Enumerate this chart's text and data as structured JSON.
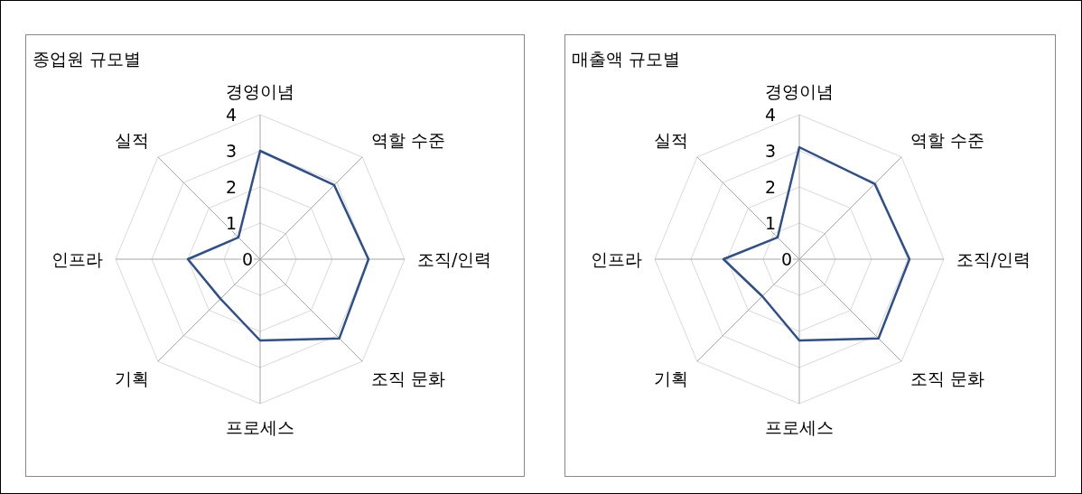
{
  "chart_data": [
    {
      "type": "radar",
      "title": "종업원 규모별",
      "categories": [
        "경영이념",
        "역할 수준",
        "조직/인력",
        "조직 문화",
        "프로세스",
        "기획",
        "인프라",
        "실적"
      ],
      "ylim": [
        0,
        4
      ],
      "yticks": [
        0,
        1,
        2,
        3,
        4
      ],
      "grid": true,
      "series": [
        {
          "color": "#2f4f8a",
          "values": [
            3.0,
            2.9,
            3.0,
            3.1,
            2.25,
            1.55,
            2.0,
            0.85
          ]
        }
      ]
    },
    {
      "type": "radar",
      "title": "매출액 규모별",
      "categories": [
        "경영이념",
        "역할 수준",
        "조직/인력",
        "조직 문화",
        "프로세스",
        "기획",
        "인프라",
        "실적"
      ],
      "ylim": [
        0,
        4
      ],
      "yticks": [
        0,
        1,
        2,
        3,
        4
      ],
      "grid": true,
      "series": [
        {
          "color": "#2f4f8a",
          "values": [
            3.1,
            2.95,
            3.05,
            3.1,
            2.25,
            1.45,
            2.1,
            0.85
          ]
        }
      ]
    }
  ]
}
